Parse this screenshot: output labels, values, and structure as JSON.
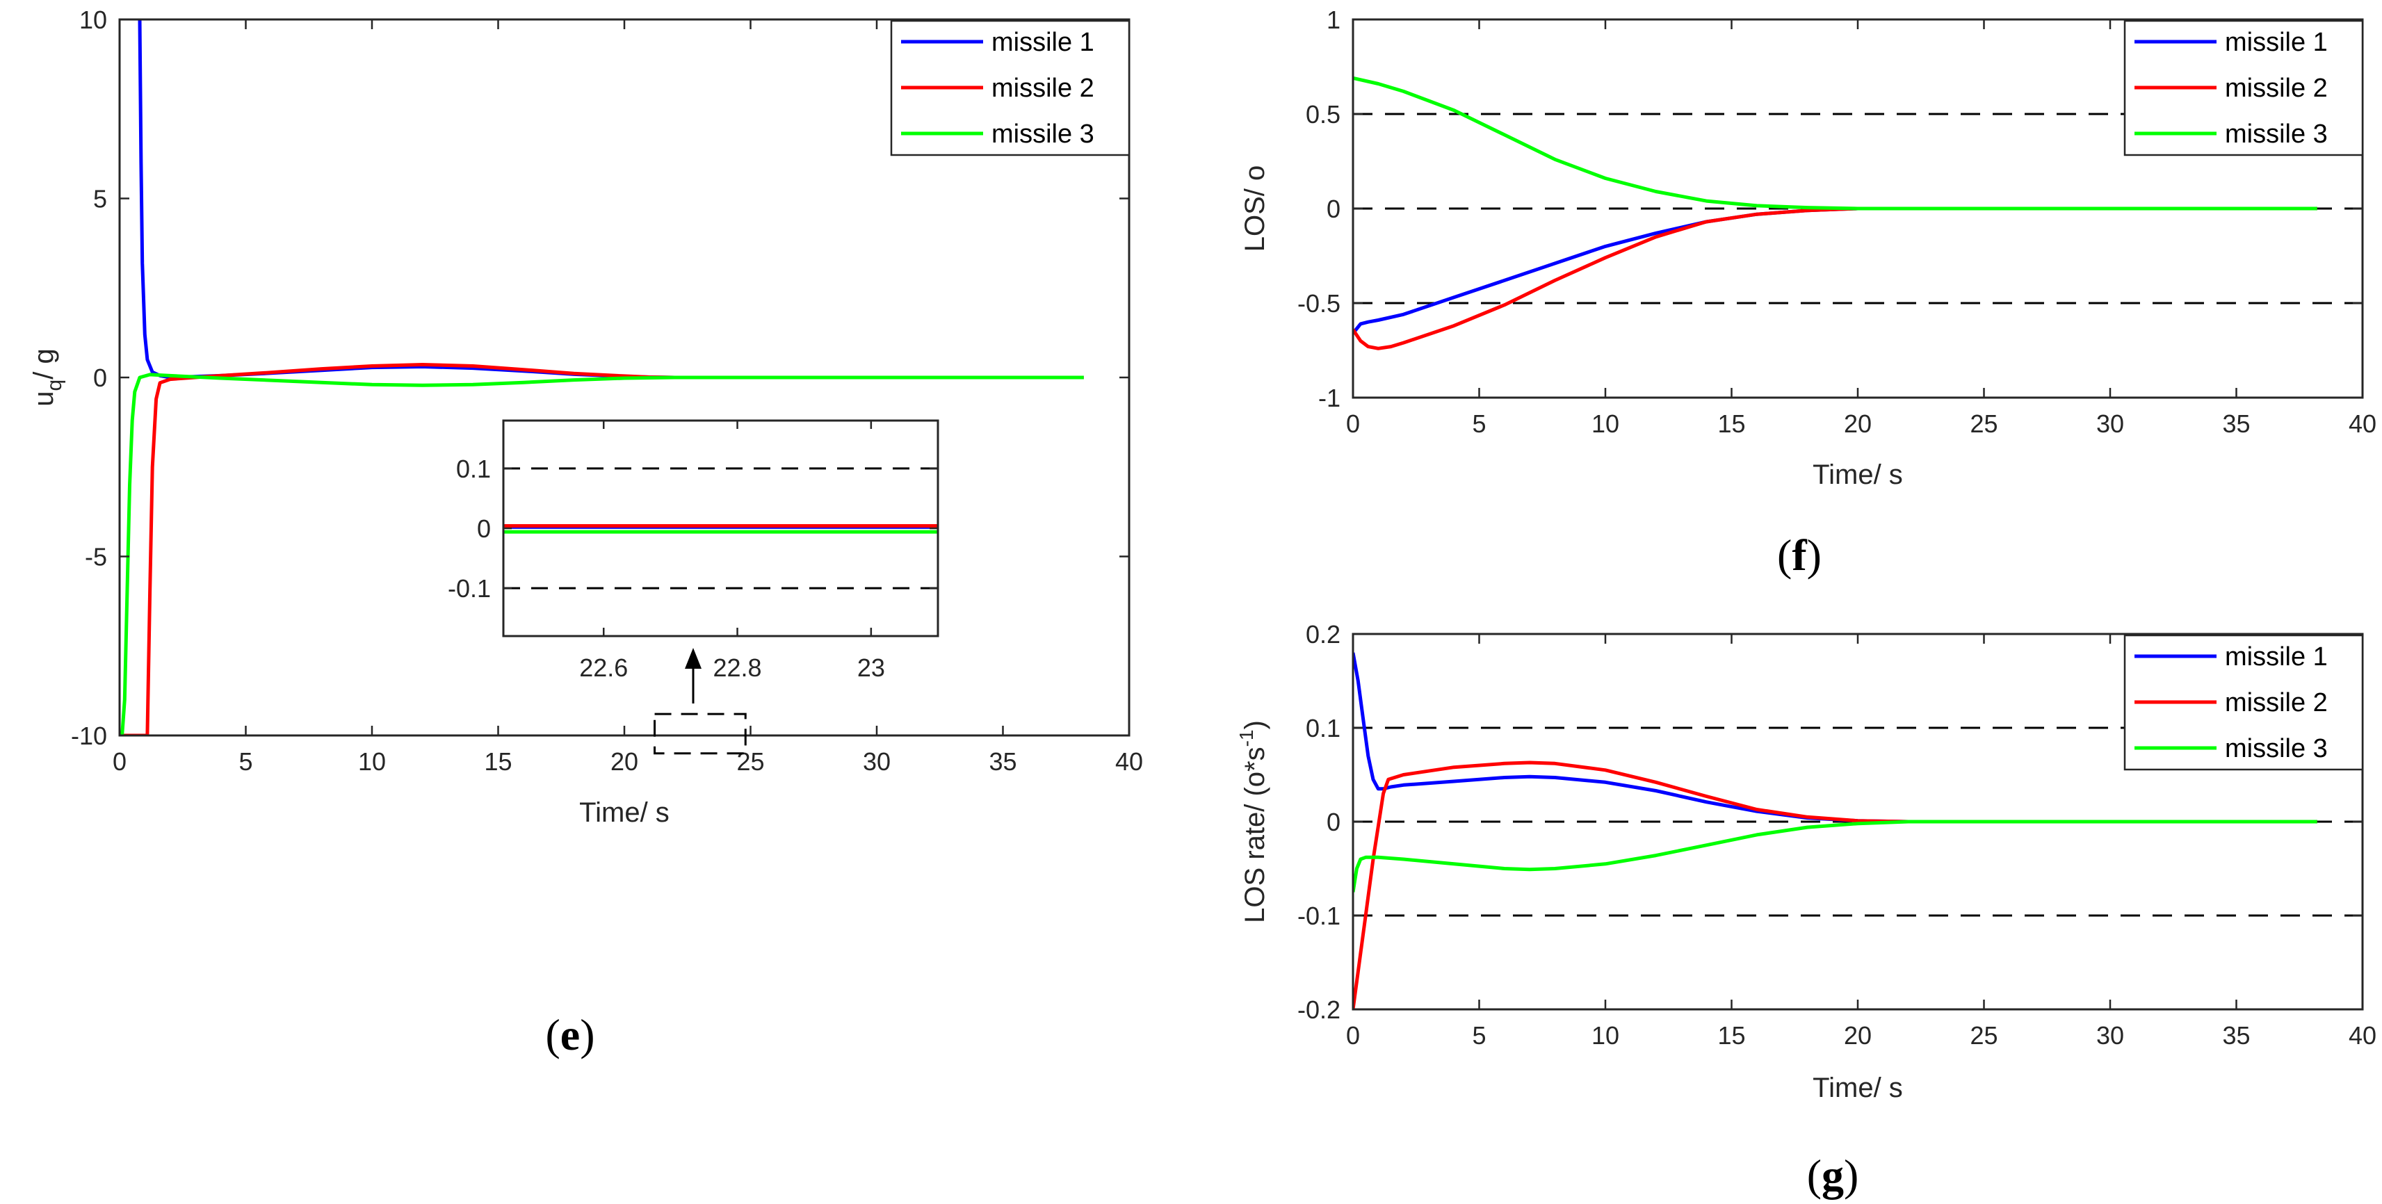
{
  "colors": {
    "missile1": "#0000ff",
    "missile2": "#ff0000",
    "missile3": "#00ff00",
    "ref": "#000000"
  },
  "chart_data": [
    {
      "panel": "e",
      "type": "line",
      "xlabel": "Time/ s",
      "ylabel_main": "u",
      "ylabel_sub": "q",
      "ylabel_rest": "/ g",
      "xlim": [
        0,
        40
      ],
      "ylim": [
        -10,
        10
      ],
      "xticks": [
        0,
        5,
        10,
        15,
        20,
        25,
        30,
        35,
        40
      ],
      "yticks": [
        -10,
        -5,
        0,
        5,
        10
      ],
      "legend": [
        "missile 1",
        "missile 2",
        "missile 3"
      ],
      "legend_position": "top-right",
      "series": [
        {
          "name": "missile 1",
          "color": "missile1",
          "x": [
            0.8,
            0.85,
            0.9,
            1.0,
            1.1,
            1.3,
            1.6,
            2,
            4,
            6,
            8,
            10,
            12,
            14,
            16,
            18,
            20,
            21,
            22,
            25,
            30,
            38.2
          ],
          "y": [
            10,
            6,
            3.2,
            1.2,
            0.5,
            0.15,
            0.05,
            0.0,
            0.05,
            0.12,
            0.2,
            0.28,
            0.3,
            0.26,
            0.18,
            0.09,
            0.03,
            0.01,
            0.0,
            0.0,
            0.0,
            0.0
          ]
        },
        {
          "name": "missile 2",
          "color": "missile2",
          "x": [
            0,
            1.1,
            1.2,
            1.3,
            1.45,
            1.6,
            2,
            4,
            6,
            8,
            10,
            12,
            14,
            16,
            18,
            20,
            21,
            22,
            25,
            30,
            38.2
          ],
          "y": [
            -10,
            -10,
            -6,
            -2.5,
            -0.6,
            -0.15,
            -0.05,
            0.05,
            0.14,
            0.24,
            0.32,
            0.36,
            0.32,
            0.22,
            0.11,
            0.04,
            0.01,
            0.0,
            0.0,
            0.0,
            0.0
          ]
        },
        {
          "name": "missile 3",
          "color": "missile3",
          "x": [
            0,
            0.1,
            0.2,
            0.3,
            0.4,
            0.5,
            0.6,
            0.8,
            1.2,
            2,
            4,
            6,
            8,
            10,
            12,
            14,
            16,
            18,
            20,
            21,
            22,
            25,
            30,
            38.2
          ],
          "y": [
            -10,
            -10,
            -9,
            -6,
            -3,
            -1.2,
            -0.4,
            0.0,
            0.08,
            0.05,
            -0.02,
            -0.08,
            -0.14,
            -0.2,
            -0.22,
            -0.2,
            -0.14,
            -0.07,
            -0.02,
            -0.01,
            0.0,
            0.0,
            0.0,
            0.0
          ]
        }
      ],
      "inset": {
        "xlim": [
          22.45,
          23.1
        ],
        "ylim": [
          -0.18,
          0.18
        ],
        "xticks": [
          22.6,
          22.8,
          23
        ],
        "xtick_labels": [
          "22.6",
          "22.8",
          "23"
        ],
        "yticks": [
          -0.1,
          0,
          0.1
        ],
        "ytick_labels": [
          "-0.1",
          "0",
          "0.1"
        ],
        "ref_lines": [
          0.1,
          -0.1
        ],
        "series": [
          {
            "name": "missile 1",
            "color": "missile1",
            "value": 0.002
          },
          {
            "name": "missile 2",
            "color": "missile2",
            "value": 0.004
          },
          {
            "name": "missile 3",
            "color": "missile3",
            "value": -0.006
          }
        ],
        "zoom_box_x": [
          21.2,
          24.8
        ],
        "zoom_box_y": [
          -10.5,
          -9.4
        ]
      }
    },
    {
      "panel": "f",
      "type": "line",
      "xlabel": "Time/ s",
      "ylabel": "LOS/ o",
      "xlim": [
        0,
        40
      ],
      "ylim": [
        -1,
        1
      ],
      "xticks": [
        0,
        5,
        10,
        15,
        20,
        25,
        30,
        35,
        40
      ],
      "yticks": [
        -1,
        -0.5,
        0,
        0.5,
        1
      ],
      "ref_lines": [
        0.5,
        0,
        -0.5
      ],
      "legend": [
        "missile 1",
        "missile 2",
        "missile 3"
      ],
      "legend_position": "top-right",
      "series": [
        {
          "name": "missile 1",
          "color": "missile1",
          "x": [
            0,
            0.3,
            0.6,
            1,
            2,
            4,
            6,
            8,
            10,
            12,
            14,
            16,
            18,
            20,
            22,
            25,
            30,
            38.2
          ],
          "y": [
            -0.66,
            -0.61,
            -0.6,
            -0.59,
            -0.56,
            -0.47,
            -0.38,
            -0.29,
            -0.2,
            -0.13,
            -0.07,
            -0.03,
            -0.01,
            0,
            0,
            0,
            0,
            0
          ]
        },
        {
          "name": "missile 2",
          "color": "missile2",
          "x": [
            0,
            0.3,
            0.6,
            1,
            1.5,
            2,
            4,
            6,
            8,
            10,
            12,
            14,
            16,
            18,
            20,
            22,
            25,
            30,
            38.2
          ],
          "y": [
            -0.64,
            -0.7,
            -0.73,
            -0.74,
            -0.73,
            -0.71,
            -0.62,
            -0.51,
            -0.38,
            -0.26,
            -0.15,
            -0.07,
            -0.03,
            -0.01,
            0,
            0,
            0,
            0,
            0
          ]
        },
        {
          "name": "missile 3",
          "color": "missile3",
          "x": [
            0,
            1,
            2,
            4,
            6,
            8,
            10,
            12,
            14,
            16,
            18,
            20,
            22,
            25,
            30,
            38.2
          ],
          "y": [
            0.69,
            0.66,
            0.62,
            0.52,
            0.39,
            0.26,
            0.16,
            0.09,
            0.04,
            0.015,
            0.005,
            0,
            0,
            0,
            0,
            0
          ]
        }
      ]
    },
    {
      "panel": "g",
      "type": "line",
      "xlabel": "Time/ s",
      "ylabel_main": "LOS rate/ (o*s",
      "ylabel_sup": "-1",
      "ylabel_rest": ")",
      "xlim": [
        0,
        40
      ],
      "ylim": [
        -0.2,
        0.2
      ],
      "xticks": [
        0,
        5,
        10,
        15,
        20,
        25,
        30,
        35,
        40
      ],
      "yticks": [
        -0.2,
        -0.1,
        0,
        0.1,
        0.2
      ],
      "ref_lines": [
        0.1,
        0,
        -0.1,
        -0.2
      ],
      "legend": [
        "missile 1",
        "missile 2",
        "missile 3"
      ],
      "legend_position": "top-right",
      "series": [
        {
          "name": "missile 1",
          "color": "missile1",
          "x": [
            0,
            0.2,
            0.4,
            0.6,
            0.8,
            1.0,
            1.2,
            1.5,
            2,
            4,
            6,
            7,
            8,
            10,
            12,
            14,
            16,
            18,
            20,
            22,
            25,
            30,
            38.2
          ],
          "y": [
            0.18,
            0.15,
            0.11,
            0.07,
            0.045,
            0.035,
            0.035,
            0.037,
            0.039,
            0.043,
            0.047,
            0.048,
            0.047,
            0.042,
            0.033,
            0.021,
            0.011,
            0.004,
            0.001,
            0,
            0,
            0,
            0
          ]
        },
        {
          "name": "missile 2",
          "color": "missile2",
          "x": [
            0,
            0.2,
            0.5,
            0.8,
            1.0,
            1.2,
            1.4,
            2,
            4,
            6,
            7,
            8,
            10,
            12,
            14,
            16,
            18,
            20,
            22,
            25,
            30,
            38.2
          ],
          "y": [
            -0.2,
            -0.16,
            -0.1,
            -0.04,
            -0.005,
            0.03,
            0.045,
            0.05,
            0.058,
            0.062,
            0.063,
            0.062,
            0.055,
            0.042,
            0.027,
            0.013,
            0.005,
            0.001,
            0,
            0,
            0,
            0
          ]
        },
        {
          "name": "missile 3",
          "color": "missile3",
          "x": [
            0,
            0.15,
            0.3,
            0.5,
            1,
            2,
            4,
            6,
            7,
            8,
            10,
            12,
            14,
            16,
            18,
            20,
            22,
            25,
            30,
            38.2
          ],
          "y": [
            -0.075,
            -0.05,
            -0.04,
            -0.038,
            -0.038,
            -0.04,
            -0.045,
            -0.05,
            -0.051,
            -0.05,
            -0.045,
            -0.036,
            -0.025,
            -0.014,
            -0.006,
            -0.002,
            0,
            0,
            0,
            0
          ]
        }
      ]
    }
  ],
  "panel_labels": [
    "e",
    "f",
    "g"
  ]
}
